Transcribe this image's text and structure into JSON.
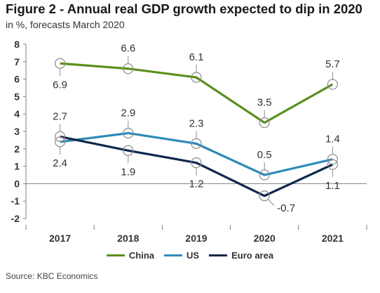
{
  "title": "Figure 2 - Annual real GDP growth expected to dip in 2020",
  "subtitle": "in %, forecasts March 2020",
  "source": "Source: KBC Economics",
  "chart_data": {
    "type": "line",
    "categories": [
      "2017",
      "2018",
      "2019",
      "2020",
      "2021"
    ],
    "ylim": [
      -2,
      8
    ],
    "yticks": [
      "8",
      "7",
      "6",
      "5",
      "4",
      "3",
      "2",
      "1",
      "0",
      "-1",
      "-2"
    ],
    "grid": false,
    "legend_position": "bottom",
    "series": [
      {
        "name": "China",
        "color": "#5a8f1e",
        "values": [
          6.9,
          6.6,
          6.1,
          3.5,
          5.7
        ],
        "labels": [
          "6.9",
          "6.6",
          "6.1",
          "3.5",
          "5.7"
        ]
      },
      {
        "name": "US",
        "color": "#2e8bb8",
        "values": [
          2.4,
          2.9,
          2.3,
          0.5,
          1.4
        ],
        "labels": [
          "2.4",
          "2.9",
          "2.3",
          "0.5",
          "1.4"
        ]
      },
      {
        "name": "Euro area",
        "color": "#10274d",
        "values": [
          2.7,
          1.9,
          1.2,
          -0.7,
          1.1
        ],
        "labels": [
          "2.7",
          "1.9",
          "1.2",
          "-0.7",
          "1.1"
        ]
      }
    ]
  }
}
